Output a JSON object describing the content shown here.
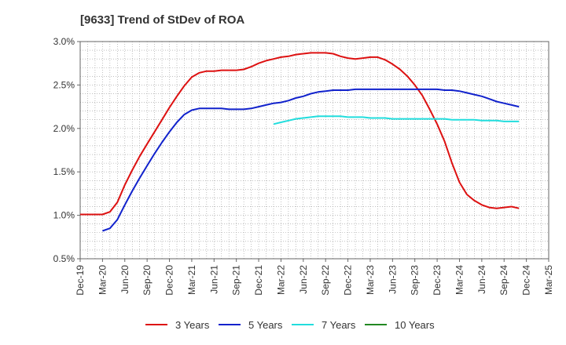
{
  "chart_data": {
    "type": "line",
    "title": "[9633]  Trend of StDev of ROA",
    "xlabel": "",
    "ylabel": "",
    "ylim": [
      0.5,
      3.0
    ],
    "y_ticks": [
      "0.5%",
      "1.0%",
      "1.5%",
      "2.0%",
      "2.5%",
      "3.0%"
    ],
    "x_ticks": [
      "Dec-19",
      "Mar-20",
      "Jun-20",
      "Sep-20",
      "Dec-20",
      "Mar-21",
      "Jun-21",
      "Sep-21",
      "Dec-21",
      "Mar-22",
      "Jun-22",
      "Sep-22",
      "Dec-22",
      "Mar-23",
      "Jun-23",
      "Sep-23",
      "Dec-23",
      "Mar-24",
      "Jun-24",
      "Sep-24",
      "Dec-24",
      "Mar-25"
    ],
    "grid": true,
    "legend_position": "bottom",
    "series": [
      {
        "name": "3 Years",
        "color": "#dd1111",
        "values": [
          1.01,
          1.01,
          1.01,
          1.01,
          1.04,
          1.15,
          1.35,
          1.52,
          1.68,
          1.82,
          1.96,
          2.1,
          2.24,
          2.37,
          2.49,
          2.59,
          2.64,
          2.66,
          2.66,
          2.67,
          2.67,
          2.67,
          2.68,
          2.71,
          2.75,
          2.78,
          2.8,
          2.82,
          2.83,
          2.85,
          2.86,
          2.87,
          2.87,
          2.87,
          2.86,
          2.83,
          2.81,
          2.8,
          2.81,
          2.82,
          2.82,
          2.79,
          2.74,
          2.68,
          2.6,
          2.5,
          2.38,
          2.22,
          2.05,
          1.85,
          1.6,
          1.38,
          1.24,
          1.17,
          1.12,
          1.09,
          1.08,
          1.09,
          1.1,
          1.08
        ]
      },
      {
        "name": "5 Years",
        "color": "#1122cc",
        "values": [
          null,
          null,
          null,
          0.82,
          0.85,
          0.95,
          1.12,
          1.28,
          1.43,
          1.57,
          1.71,
          1.84,
          1.96,
          2.07,
          2.16,
          2.21,
          2.23,
          2.23,
          2.23,
          2.23,
          2.22,
          2.22,
          2.22,
          2.23,
          2.25,
          2.27,
          2.29,
          2.3,
          2.32,
          2.35,
          2.37,
          2.4,
          2.42,
          2.43,
          2.44,
          2.44,
          2.44,
          2.45,
          2.45,
          2.45,
          2.45,
          2.45,
          2.45,
          2.45,
          2.45,
          2.45,
          2.45,
          2.45,
          2.45,
          2.44,
          2.44,
          2.43,
          2.41,
          2.39,
          2.37,
          2.34,
          2.31,
          2.29,
          2.27,
          2.25
        ]
      },
      {
        "name": "7 Years",
        "color": "#22dddd",
        "values": [
          null,
          null,
          null,
          null,
          null,
          null,
          null,
          null,
          null,
          null,
          null,
          null,
          null,
          null,
          null,
          null,
          null,
          null,
          null,
          null,
          null,
          null,
          null,
          null,
          null,
          null,
          2.05,
          2.07,
          2.09,
          2.11,
          2.12,
          2.13,
          2.14,
          2.14,
          2.14,
          2.14,
          2.13,
          2.13,
          2.13,
          2.12,
          2.12,
          2.12,
          2.11,
          2.11,
          2.11,
          2.11,
          2.11,
          2.11,
          2.11,
          2.11,
          2.1,
          2.1,
          2.1,
          2.1,
          2.09,
          2.09,
          2.09,
          2.08,
          2.08,
          2.08
        ]
      },
      {
        "name": "10 Years",
        "color": "#228822",
        "values": []
      }
    ]
  }
}
